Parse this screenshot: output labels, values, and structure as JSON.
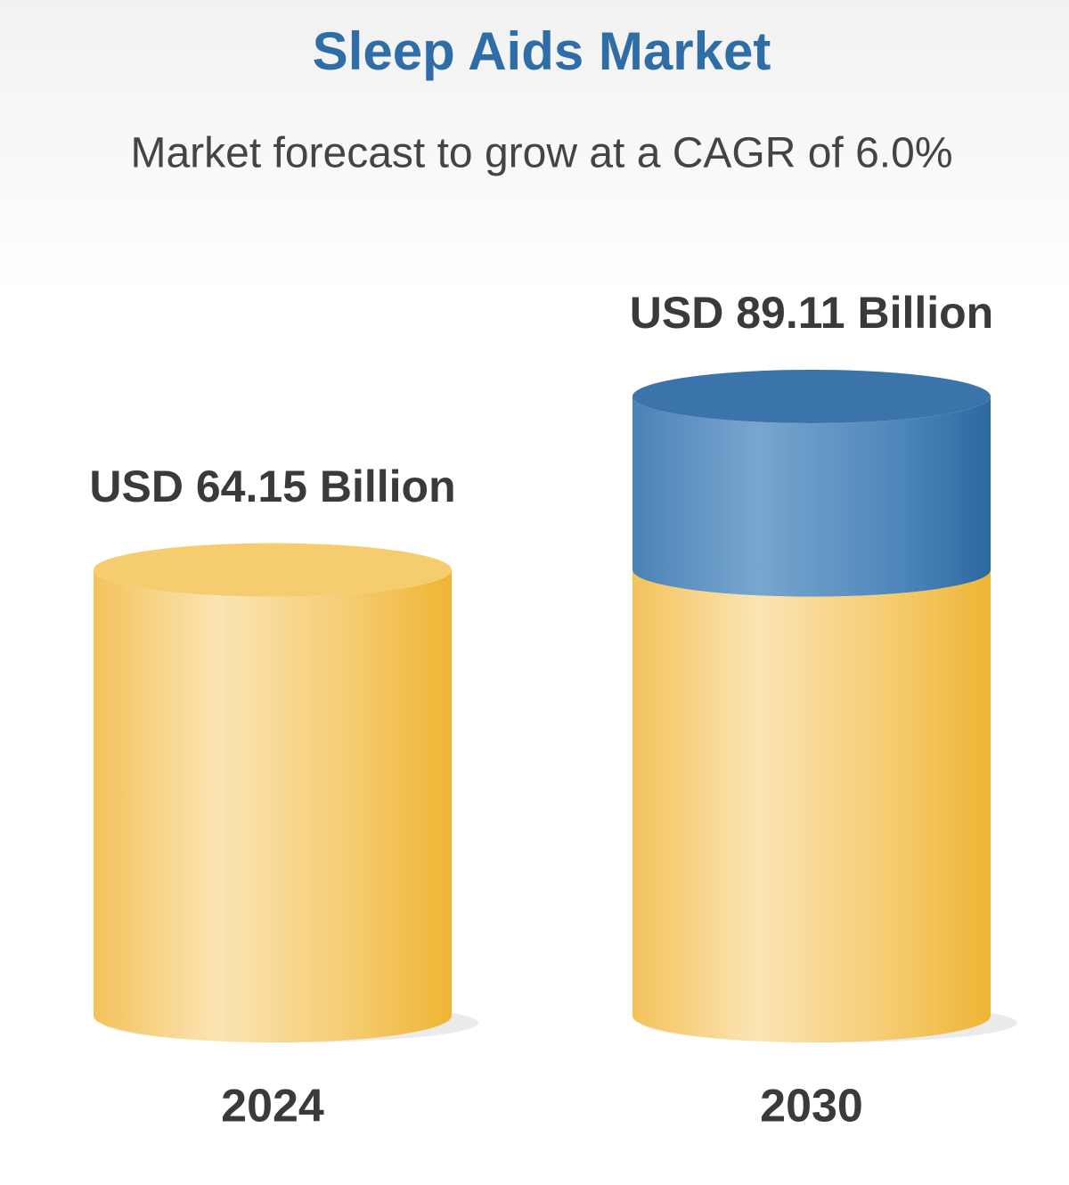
{
  "chart_data": {
    "type": "cylinder",
    "title": "Sleep Aids Market",
    "subtitle": "Market forecast to grow at a CAGR of 6.0%",
    "categories": [
      "2024",
      "2030"
    ],
    "values": [
      64.15,
      89.11
    ],
    "value_labels": [
      "USD 64.15 Billion",
      "USD 89.11 Billion"
    ],
    "color": "#f2bd47",
    "growth_color": "#3b74aa"
  }
}
